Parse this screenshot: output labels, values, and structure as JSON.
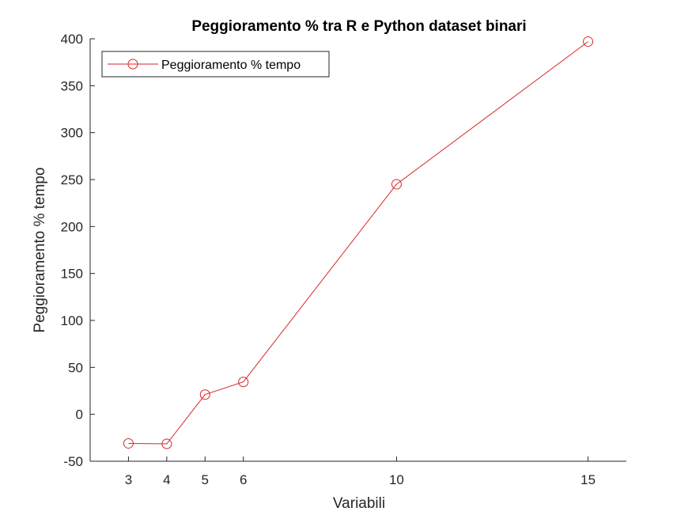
{
  "chart_data": {
    "type": "line",
    "title": "Peggioramento % tra R e Python dataset binari",
    "xlabel": "Variabili",
    "ylabel": "Peggioramento % tempo",
    "x": [
      3,
      4,
      5,
      6,
      10,
      15
    ],
    "series": [
      {
        "name": "Peggioramento % tempo",
        "values": [
          -31,
          -31.5,
          21,
          34.5,
          245,
          397
        ],
        "color": "#d62728",
        "marker": "circle"
      }
    ],
    "xlim": [
      2,
      16
    ],
    "ylim": [
      -50,
      400
    ],
    "xticks": [
      3,
      4,
      5,
      6,
      10,
      15
    ],
    "yticks": [
      -50,
      0,
      50,
      100,
      150,
      200,
      250,
      300,
      350,
      400
    ],
    "grid": false,
    "legend_position": "top-left"
  }
}
